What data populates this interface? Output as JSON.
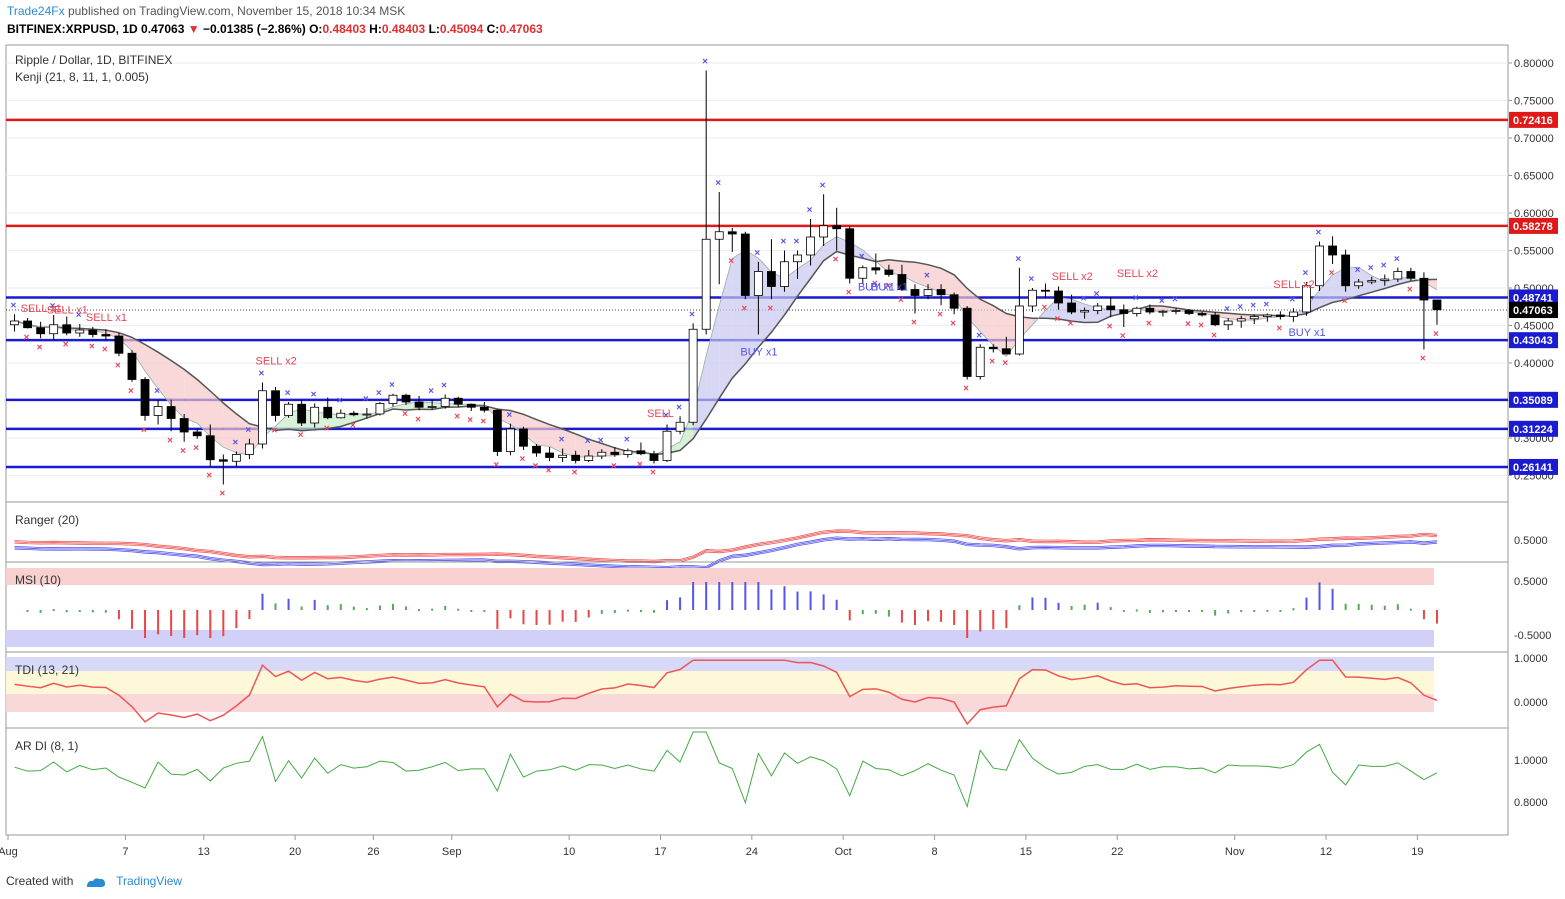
{
  "header": {
    "author": "Trade24Fx",
    "published_text": "published on TradingView.com, November 15, 2018 10:34 MSK",
    "symbol": "BITFINEX:XRPUSD, 1D",
    "last": "0.47063",
    "change": "−0.01385 (−2.86%)",
    "o_label": "O:",
    "o": "0.48403",
    "h_label": "H:",
    "h": "0.48403",
    "l_label": "L:",
    "l": "0.45094",
    "c_label": "C:",
    "c": "0.47063"
  },
  "footer": {
    "created_with": "Created with",
    "brand": "TradingView"
  },
  "colors": {
    "up": "#ffffff",
    "down": "#000000",
    "support": "#1a1ad0",
    "resistance": "#e01818",
    "buy_mark": "#5555ee",
    "sell_mark": "#ee4455",
    "grid": "#eeeeee"
  },
  "chart_data": {
    "type": "candlestick",
    "title": "Ripple / Dollar, 1D, BITFINEX",
    "indicator_label": "Kenji (21, 8, 11, 1, 0.005)",
    "x_tick_labels": [
      "Aug",
      "7",
      "13",
      "20",
      "26",
      "Sep",
      "10",
      "17",
      "24",
      "Oct",
      "8",
      "15",
      "22",
      "Nov",
      "12",
      "19"
    ],
    "y_tick_labels": [
      "0.25000",
      "0.30000",
      "0.35000",
      "0.40000",
      "0.45000",
      "0.50000",
      "0.55000",
      "0.60000",
      "0.65000",
      "0.70000",
      "0.75000",
      "0.80000"
    ],
    "ylim": [
      0.22,
      0.82
    ],
    "last_price": 0.47063,
    "horizontal_levels": [
      {
        "value": 0.72416,
        "kind": "resistance",
        "label": "0.72416"
      },
      {
        "value": 0.58278,
        "kind": "resistance",
        "label": "0.58278"
      },
      {
        "value": 0.48741,
        "kind": "support",
        "label": "0.48741"
      },
      {
        "value": 0.43043,
        "kind": "support",
        "label": "0.43043"
      },
      {
        "value": 0.35089,
        "kind": "support",
        "label": "0.35089"
      },
      {
        "value": 0.31224,
        "kind": "support",
        "label": "0.31224"
      },
      {
        "value": 0.26141,
        "kind": "support",
        "label": "0.26141"
      }
    ],
    "last_label": "0.47063",
    "candles": [
      [
        0.451,
        0.465,
        0.442,
        0.456
      ],
      [
        0.456,
        0.46,
        0.446,
        0.447
      ],
      [
        0.447,
        0.455,
        0.433,
        0.439
      ],
      [
        0.439,
        0.464,
        0.431,
        0.451
      ],
      [
        0.451,
        0.462,
        0.437,
        0.44
      ],
      [
        0.44,
        0.452,
        0.435,
        0.444
      ],
      [
        0.444,
        0.448,
        0.434,
        0.438
      ],
      [
        0.438,
        0.445,
        0.43,
        0.436
      ],
      [
        0.436,
        0.44,
        0.409,
        0.413
      ],
      [
        0.413,
        0.417,
        0.375,
        0.378
      ],
      [
        0.378,
        0.381,
        0.323,
        0.33
      ],
      [
        0.33,
        0.351,
        0.318,
        0.342
      ],
      [
        0.342,
        0.351,
        0.309,
        0.326
      ],
      [
        0.326,
        0.332,
        0.295,
        0.308
      ],
      [
        0.308,
        0.312,
        0.299,
        0.303
      ],
      [
        0.303,
        0.318,
        0.262,
        0.271
      ],
      [
        0.271,
        0.278,
        0.238,
        0.269
      ],
      [
        0.269,
        0.282,
        0.262,
        0.278
      ],
      [
        0.278,
        0.299,
        0.272,
        0.292
      ],
      [
        0.292,
        0.374,
        0.286,
        0.363
      ],
      [
        0.363,
        0.368,
        0.322,
        0.33
      ],
      [
        0.33,
        0.348,
        0.327,
        0.345
      ],
      [
        0.345,
        0.35,
        0.316,
        0.32
      ],
      [
        0.32,
        0.346,
        0.314,
        0.341
      ],
      [
        0.341,
        0.354,
        0.325,
        0.327
      ],
      [
        0.327,
        0.338,
        0.326,
        0.333
      ],
      [
        0.333,
        0.336,
        0.329,
        0.331
      ],
      [
        0.331,
        0.34,
        0.326,
        0.332
      ],
      [
        0.332,
        0.348,
        0.33,
        0.346
      ],
      [
        0.346,
        0.359,
        0.342,
        0.357
      ],
      [
        0.357,
        0.359,
        0.344,
        0.348
      ],
      [
        0.348,
        0.356,
        0.337,
        0.341
      ],
      [
        0.341,
        0.351,
        0.338,
        0.342
      ],
      [
        0.342,
        0.358,
        0.339,
        0.353
      ],
      [
        0.353,
        0.355,
        0.341,
        0.345
      ],
      [
        0.345,
        0.346,
        0.336,
        0.341
      ],
      [
        0.341,
        0.348,
        0.334,
        0.337
      ],
      [
        0.337,
        0.339,
        0.276,
        0.282
      ],
      [
        0.282,
        0.319,
        0.277,
        0.312
      ],
      [
        0.312,
        0.315,
        0.284,
        0.289
      ],
      [
        0.289,
        0.292,
        0.275,
        0.28
      ],
      [
        0.28,
        0.288,
        0.269,
        0.274
      ],
      [
        0.274,
        0.286,
        0.268,
        0.277
      ],
      [
        0.277,
        0.283,
        0.266,
        0.27
      ],
      [
        0.27,
        0.284,
        0.268,
        0.276
      ],
      [
        0.276,
        0.285,
        0.272,
        0.281
      ],
      [
        0.281,
        0.288,
        0.275,
        0.278
      ],
      [
        0.278,
        0.286,
        0.274,
        0.283
      ],
      [
        0.283,
        0.294,
        0.277,
        0.279
      ],
      [
        0.279,
        0.283,
        0.266,
        0.27
      ],
      [
        0.27,
        0.318,
        0.268,
        0.309
      ],
      [
        0.309,
        0.329,
        0.305,
        0.321
      ],
      [
        0.321,
        0.453,
        0.317,
        0.445
      ],
      [
        0.445,
        0.79,
        0.438,
        0.565
      ],
      [
        0.565,
        0.628,
        0.505,
        0.575
      ],
      [
        0.575,
        0.58,
        0.548,
        0.572
      ],
      [
        0.572,
        0.575,
        0.485,
        0.49
      ],
      [
        0.49,
        0.535,
        0.438,
        0.522
      ],
      [
        0.522,
        0.565,
        0.485,
        0.502
      ],
      [
        0.502,
        0.55,
        0.495,
        0.535
      ],
      [
        0.535,
        0.55,
        0.512,
        0.544
      ],
      [
        0.544,
        0.592,
        0.53,
        0.568
      ],
      [
        0.568,
        0.625,
        0.556,
        0.583
      ],
      [
        0.583,
        0.607,
        0.55,
        0.579
      ],
      [
        0.579,
        0.582,
        0.506,
        0.513
      ],
      [
        0.513,
        0.53,
        0.505,
        0.527
      ],
      [
        0.527,
        0.546,
        0.518,
        0.524
      ],
      [
        0.524,
        0.531,
        0.515,
        0.518
      ],
      [
        0.518,
        0.531,
        0.496,
        0.498
      ],
      [
        0.498,
        0.505,
        0.466,
        0.49
      ],
      [
        0.49,
        0.505,
        0.485,
        0.498
      ],
      [
        0.498,
        0.505,
        0.477,
        0.491
      ],
      [
        0.491,
        0.494,
        0.465,
        0.473
      ],
      [
        0.473,
        0.476,
        0.378,
        0.382
      ],
      [
        0.382,
        0.425,
        0.378,
        0.421
      ],
      [
        0.421,
        0.425,
        0.414,
        0.419
      ],
      [
        0.419,
        0.435,
        0.412,
        0.412
      ],
      [
        0.412,
        0.527,
        0.41,
        0.476
      ],
      [
        0.476,
        0.5,
        0.468,
        0.497
      ],
      [
        0.497,
        0.506,
        0.486,
        0.496
      ],
      [
        0.496,
        0.502,
        0.471,
        0.48
      ],
      [
        0.48,
        0.491,
        0.465,
        0.468
      ],
      [
        0.468,
        0.474,
        0.459,
        0.47
      ],
      [
        0.47,
        0.48,
        0.465,
        0.476
      ],
      [
        0.476,
        0.488,
        0.461,
        0.471
      ],
      [
        0.471,
        0.478,
        0.448,
        0.466
      ],
      [
        0.466,
        0.475,
        0.462,
        0.473
      ],
      [
        0.473,
        0.478,
        0.465,
        0.468
      ],
      [
        0.468,
        0.471,
        0.462,
        0.469
      ],
      [
        0.469,
        0.473,
        0.465,
        0.47
      ],
      [
        0.47,
        0.472,
        0.464,
        0.466
      ],
      [
        0.466,
        0.468,
        0.462,
        0.464
      ],
      [
        0.464,
        0.468,
        0.449,
        0.451
      ],
      [
        0.451,
        0.46,
        0.444,
        0.456
      ],
      [
        0.456,
        0.463,
        0.447,
        0.459
      ],
      [
        0.459,
        0.465,
        0.452,
        0.462
      ],
      [
        0.462,
        0.466,
        0.455,
        0.464
      ],
      [
        0.464,
        0.469,
        0.458,
        0.462
      ],
      [
        0.462,
        0.473,
        0.455,
        0.468
      ],
      [
        0.468,
        0.508,
        0.463,
        0.503
      ],
      [
        0.503,
        0.562,
        0.496,
        0.556
      ],
      [
        0.556,
        0.569,
        0.532,
        0.544
      ],
      [
        0.544,
        0.551,
        0.495,
        0.503
      ],
      [
        0.503,
        0.512,
        0.499,
        0.508
      ],
      [
        0.508,
        0.515,
        0.505,
        0.51
      ],
      [
        0.51,
        0.518,
        0.503,
        0.512
      ],
      [
        0.512,
        0.527,
        0.508,
        0.522
      ],
      [
        0.522,
        0.527,
        0.51,
        0.513
      ],
      [
        0.513,
        0.521,
        0.418,
        0.484
      ],
      [
        0.484,
        0.484,
        0.451,
        0.471
      ]
    ]
  },
  "signals": {
    "sell": [
      {
        "label": "SELL x1",
        "i": 2,
        "price": 0.468
      },
      {
        "label": "SELL x1",
        "i": 4,
        "price": 0.466
      },
      {
        "label": "SELL x1",
        "i": 7,
        "price": 0.456
      },
      {
        "label": "SELL x2",
        "i": 20,
        "price": 0.398
      },
      {
        "label": "SELL",
        "i": 50,
        "price": 0.328
      },
      {
        "label": "SELL x2",
        "i": 81,
        "price": 0.511
      },
      {
        "label": "SELL x2",
        "i": 86,
        "price": 0.515
      },
      {
        "label": "SELL x2",
        "i": 98,
        "price": 0.5
      }
    ],
    "buy": [
      {
        "label": "BUY x1",
        "i": 57,
        "price": 0.41
      },
      {
        "label": "BUY x1",
        "i": 66,
        "price": 0.497
      },
      {
        "label": "BUY x1",
        "i": 67,
        "price": 0.497
      },
      {
        "label": "BUY x1",
        "i": 99,
        "price": 0.436
      }
    ]
  },
  "panels": {
    "ranger": {
      "label": "Ranger (20)",
      "ticks": [
        "0.5000"
      ]
    },
    "msi": {
      "label": "MSI (10)",
      "ticks": [
        "0.5000",
        "-0.5000"
      ]
    },
    "tdi": {
      "label": "TDI (13, 21)",
      "ticks": [
        "1.0000",
        "0.0000"
      ]
    },
    "ardi": {
      "label": "AR DI (8, 1)",
      "ticks": [
        "1.0000",
        "0.8000"
      ]
    }
  }
}
